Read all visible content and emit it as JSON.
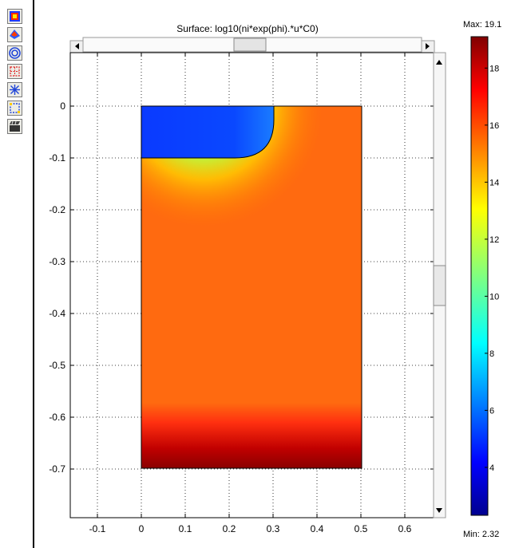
{
  "toolbar": {
    "buttons": [
      {
        "name": "surface-plot-icon"
      },
      {
        "name": "height-plot-icon"
      },
      {
        "name": "contour-plot-icon"
      },
      {
        "name": "boundary-plot-icon"
      },
      {
        "name": "arrow-plot-icon"
      },
      {
        "name": "selection-plot-icon"
      },
      {
        "name": "animate-icon"
      }
    ]
  },
  "plot": {
    "title": "Surface: log10(ni*exp(phi).*u*C0)",
    "colorbar": {
      "max_label": "Max: 19.1",
      "min_label": "Min: 2.32",
      "ticks": [
        "18",
        "16",
        "14",
        "12",
        "10",
        "8",
        "6",
        "4"
      ],
      "tick_values": [
        18,
        16,
        14,
        12,
        10,
        8,
        6,
        4
      ],
      "min": 2.32,
      "max": 19.1
    }
  },
  "chart_data": {
    "type": "heatmap",
    "title": "Surface: log10(ni*exp(phi).*u*C0)",
    "xlim": [
      -0.15,
      0.65
    ],
    "ylim": [
      -0.75,
      0.1
    ],
    "x_ticks": [
      "-0.1",
      "0",
      "0.1",
      "0.2",
      "0.3",
      "0.4",
      "0.5",
      "0.6"
    ],
    "x_tick_values": [
      -0.1,
      0,
      0.1,
      0.2,
      0.3,
      0.4,
      0.5,
      0.6
    ],
    "y_ticks": [
      "0",
      "-0.1",
      "-0.2",
      "-0.3",
      "-0.4",
      "-0.5",
      "-0.6",
      "-0.7"
    ],
    "y_tick_values": [
      0,
      -0.1,
      -0.2,
      -0.3,
      -0.4,
      -0.5,
      -0.6,
      -0.7
    ],
    "grid": true,
    "domain": {
      "x": [
        0,
        0.5
      ],
      "y": [
        -0.7,
        0
      ]
    },
    "regions": [
      {
        "name": "low-value-region",
        "x": [
          0,
          0.3
        ],
        "y": [
          -0.1,
          0
        ],
        "value": 3
      },
      {
        "name": "bulk-region",
        "x": [
          0,
          0.5
        ],
        "y": [
          -0.55,
          -0.1
        ],
        "value": 14.5
      },
      {
        "name": "bottom-high-region",
        "x": [
          0,
          0.5
        ],
        "y": [
          -0.7,
          -0.6
        ],
        "value": 19
      }
    ],
    "colorbar_range": [
      2.32,
      19.1
    ]
  },
  "colors": {
    "accent": "#ff6a00",
    "low": "#0a3cff",
    "high": "#8a0000"
  }
}
